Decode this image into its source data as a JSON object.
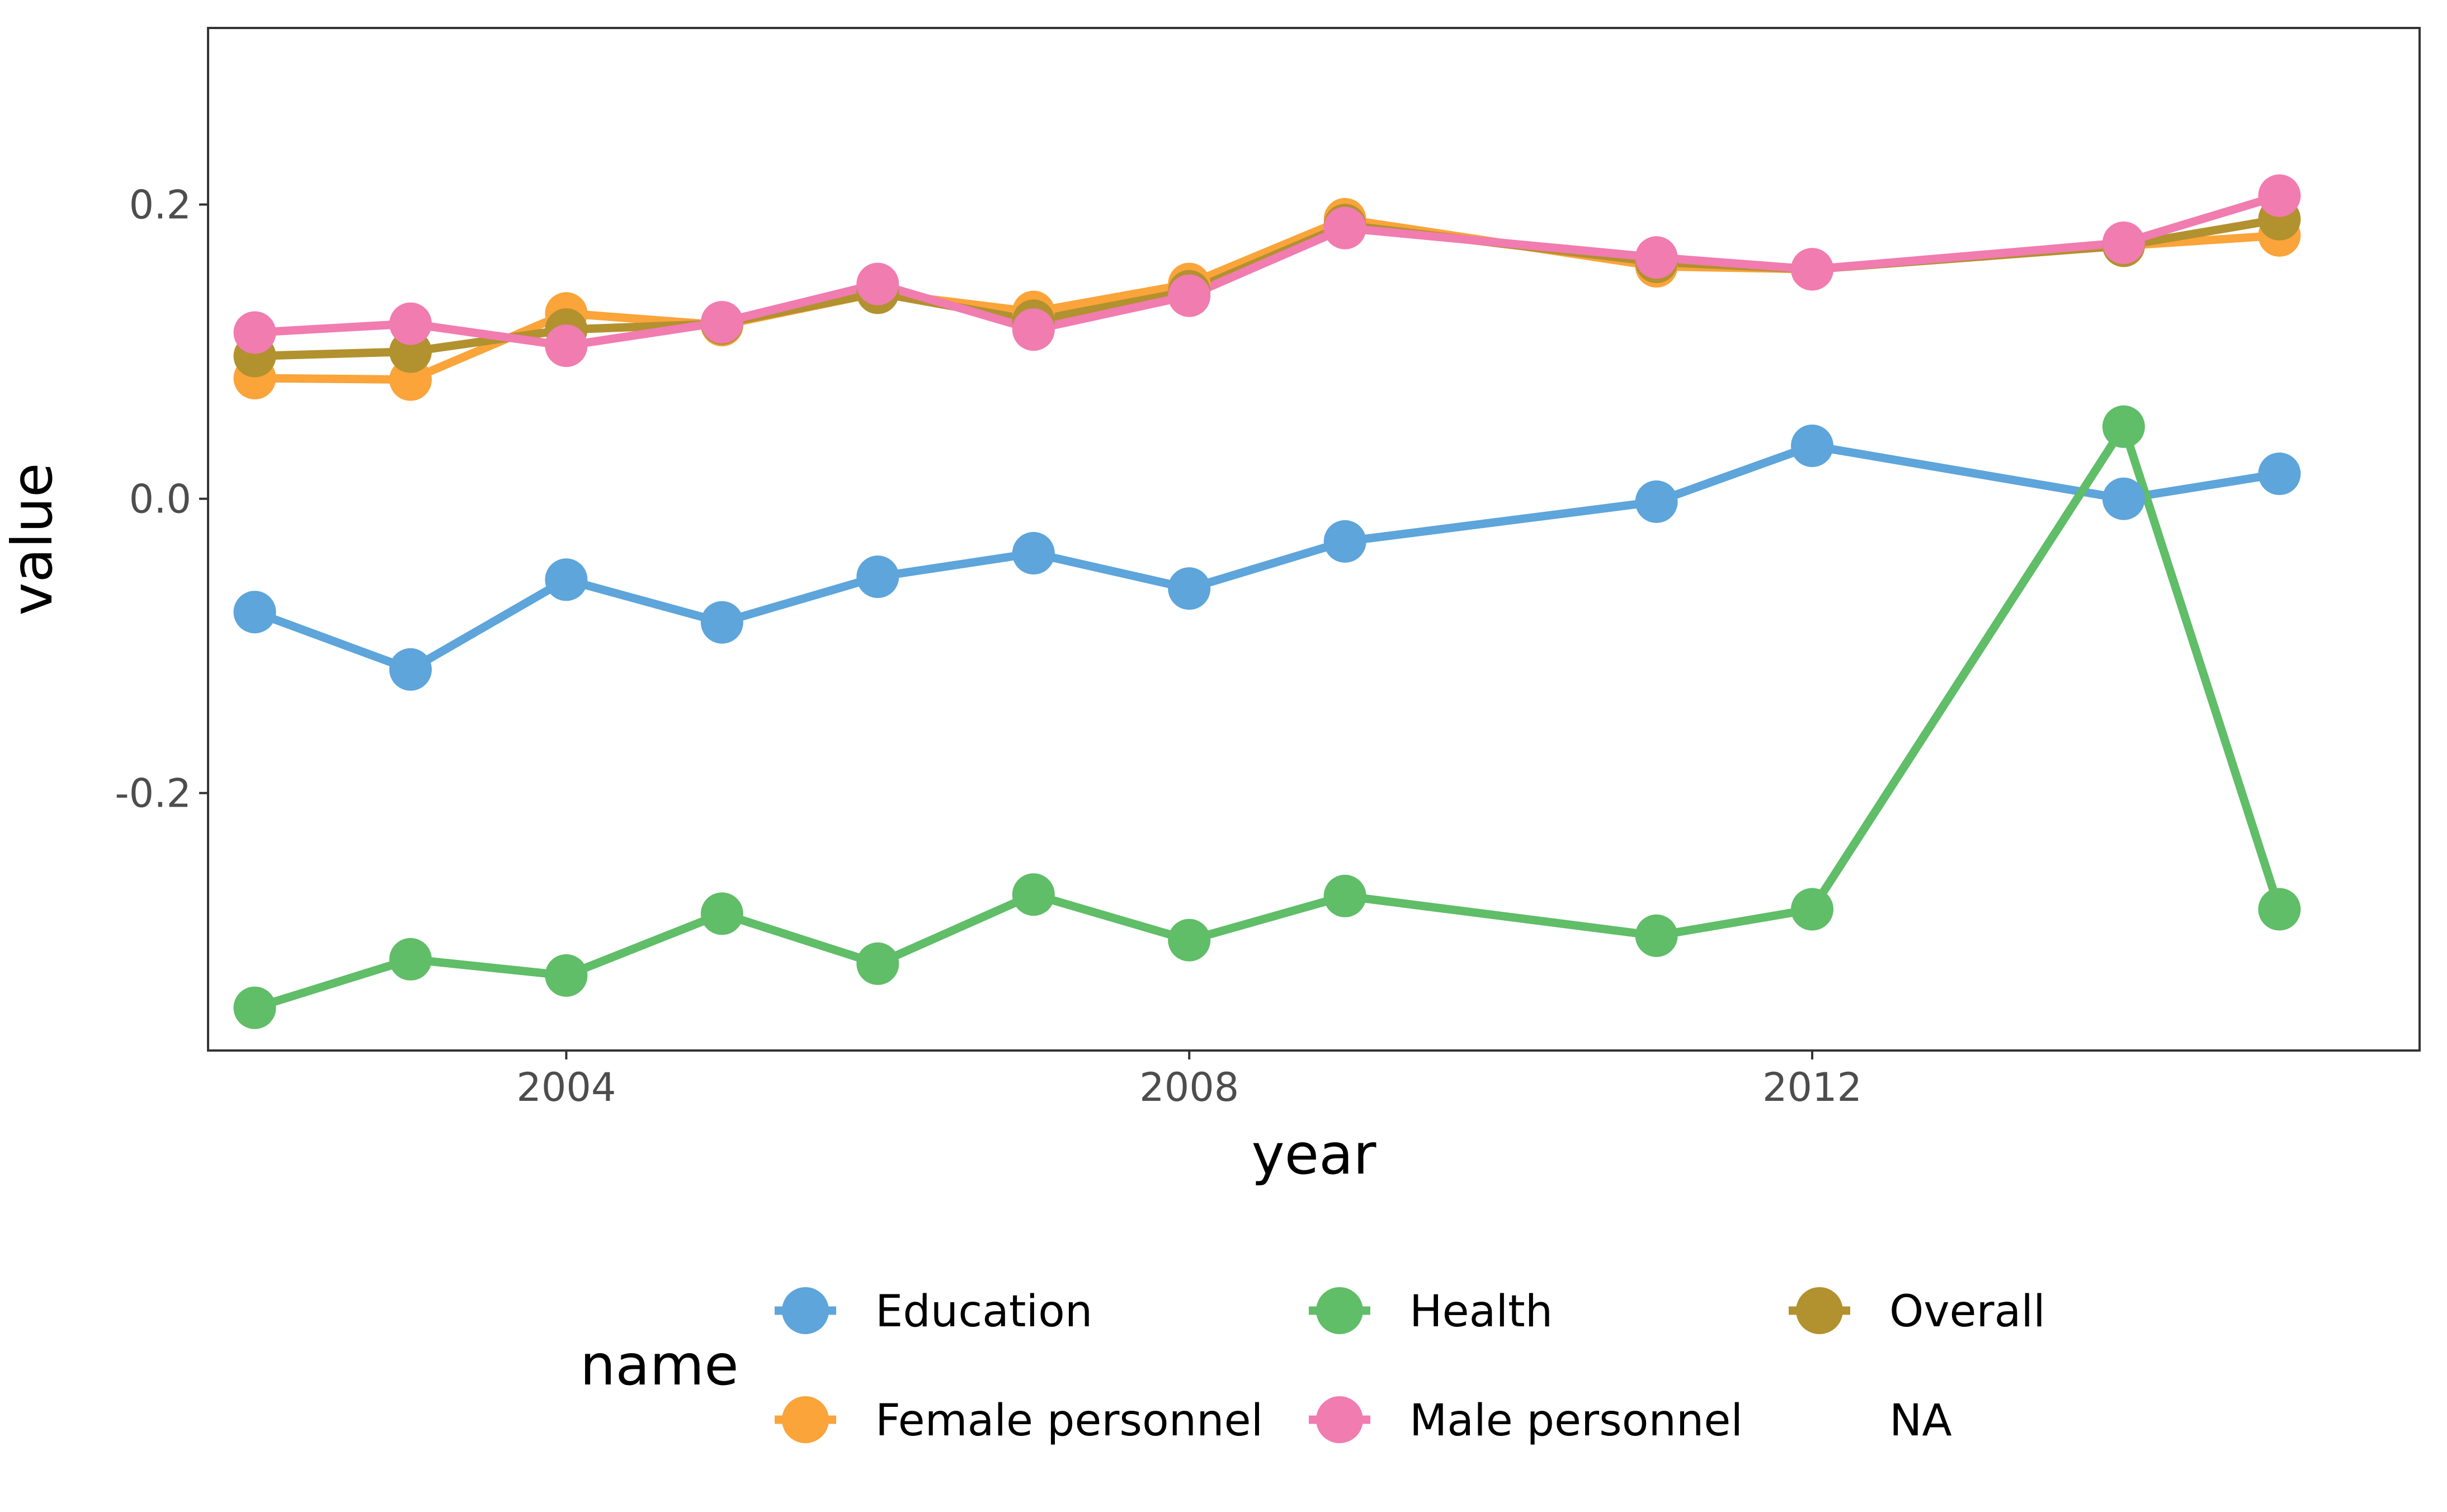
{
  "chart_data": {
    "type": "line",
    "xlabel": "year",
    "ylabel": "value",
    "xlim": [
      2001.7,
      2015.9
    ],
    "ylim": [
      -0.375,
      0.32
    ],
    "x_ticks": [
      2004,
      2008,
      2012
    ],
    "y_ticks": [
      -0.2,
      0.0,
      0.2
    ],
    "y_tick_labels": [
      "-0.2",
      "0.0",
      "0.2"
    ],
    "grid": false,
    "legend": {
      "title": "name",
      "position": "bottom",
      "entries": [
        "Education",
        "Female personnel",
        "Health",
        "Male personnel",
        "Overall",
        "NA"
      ]
    },
    "x": [
      2002,
      2003,
      2004,
      2005,
      2006,
      2007,
      2008,
      2009,
      2011,
      2012,
      2014,
      2015
    ],
    "series": [
      {
        "name": "Education",
        "color": "#5DA5DA",
        "values": [
          -0.077,
          -0.116,
          -0.055,
          -0.084,
          -0.053,
          -0.037,
          -0.061,
          -0.029,
          -0.002,
          0.036,
          0.0,
          0.017
        ]
      },
      {
        "name": "Health",
        "color": "#60BD68",
        "values": [
          -0.346,
          -0.313,
          -0.324,
          -0.282,
          -0.316,
          -0.269,
          -0.3,
          -0.27,
          -0.297,
          -0.279,
          0.049,
          -0.279
        ]
      },
      {
        "name": "Female personnel",
        "color": "#FAA43A",
        "values": [
          0.082,
          0.081,
          0.126,
          0.118,
          0.14,
          0.127,
          0.146,
          0.19,
          0.158,
          0.156,
          0.172,
          0.179
        ]
      },
      {
        "name": "Overall",
        "color": "#B2912F",
        "values": [
          0.097,
          0.1,
          0.115,
          0.119,
          0.14,
          0.121,
          0.141,
          0.186,
          0.161,
          0.156,
          0.172,
          0.19
        ]
      },
      {
        "name": "Male personnel",
        "color": "#F17CB0",
        "values": [
          0.113,
          0.119,
          0.104,
          0.12,
          0.146,
          0.115,
          0.138,
          0.184,
          0.164,
          0.156,
          0.174,
          0.206
        ]
      }
    ]
  }
}
